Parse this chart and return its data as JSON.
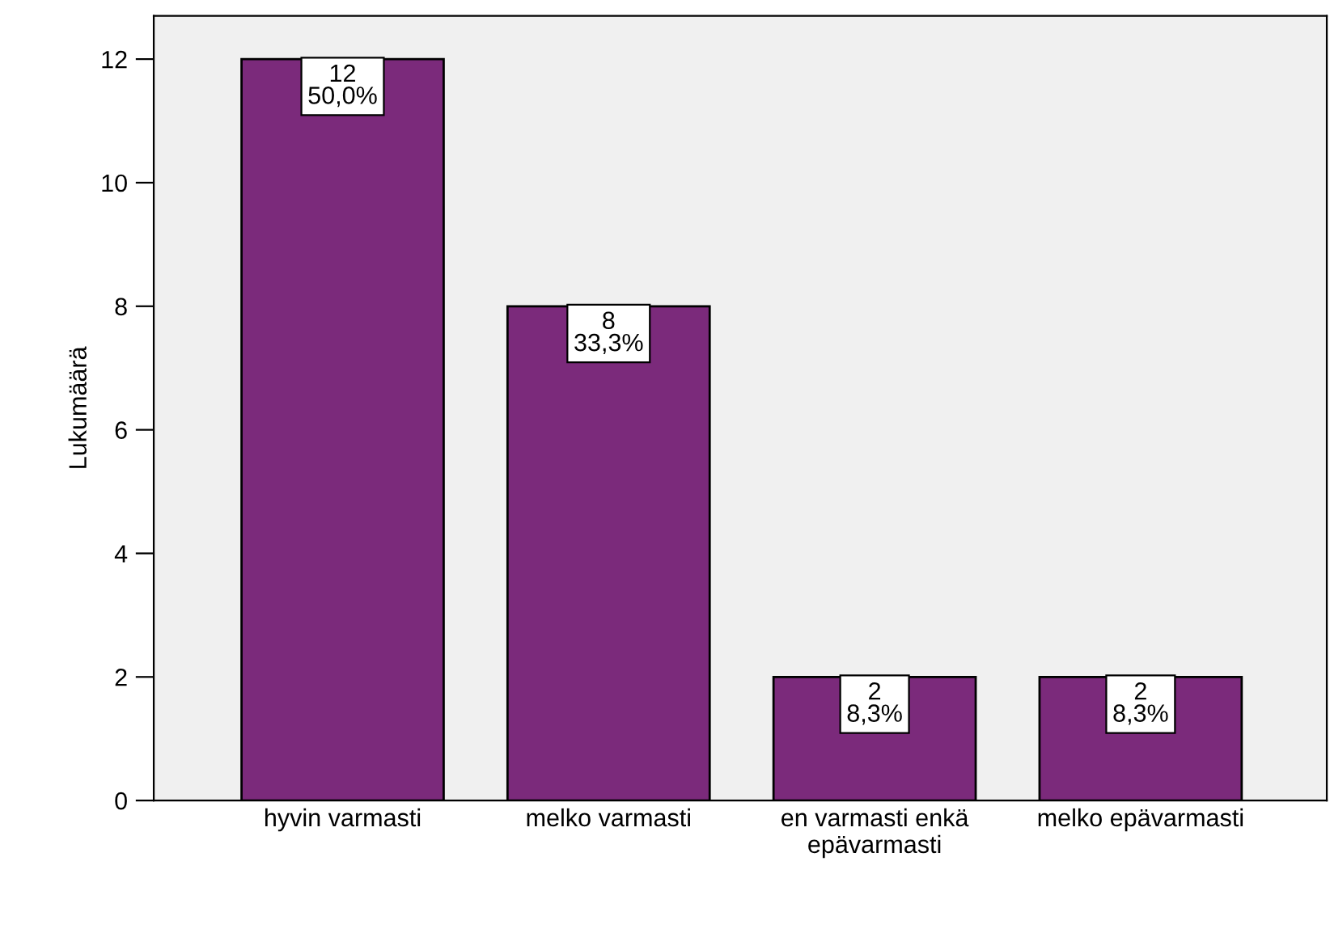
{
  "chart_data": {
    "type": "bar",
    "ylabel": "Lukumäärä",
    "categories": [
      "hyvin varmasti",
      "melko varmasti",
      "en varmasti enkä\nepävarmasti",
      "melko epävarmasti"
    ],
    "values": [
      12,
      8,
      2,
      2
    ],
    "color": "#7b2a7b",
    "value_labels": [
      "12\n50,0%",
      "8\n33,3%",
      "2\n8,3%",
      "2\n8,3%"
    ],
    "ylim": [
      0,
      12.7
    ],
    "yticks": [
      0,
      2,
      4,
      6,
      8,
      10,
      12
    ],
    "grid": false
  }
}
